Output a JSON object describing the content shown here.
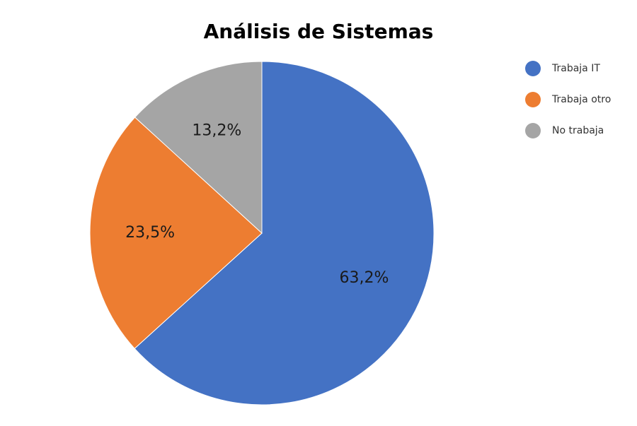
{
  "chart_data": {
    "type": "pie",
    "title": "Análisis de Sistemas",
    "categories": [
      "Trabaja IT",
      "Trabaja otro",
      "No trabaja"
    ],
    "values": [
      63.2,
      23.5,
      13.2
    ],
    "labels": [
      "63,2%",
      "23,5%",
      "13,2%"
    ],
    "colors": [
      "#4472C4",
      "#ED7D31",
      "#A5A5A5"
    ],
    "legend_position": "right"
  }
}
